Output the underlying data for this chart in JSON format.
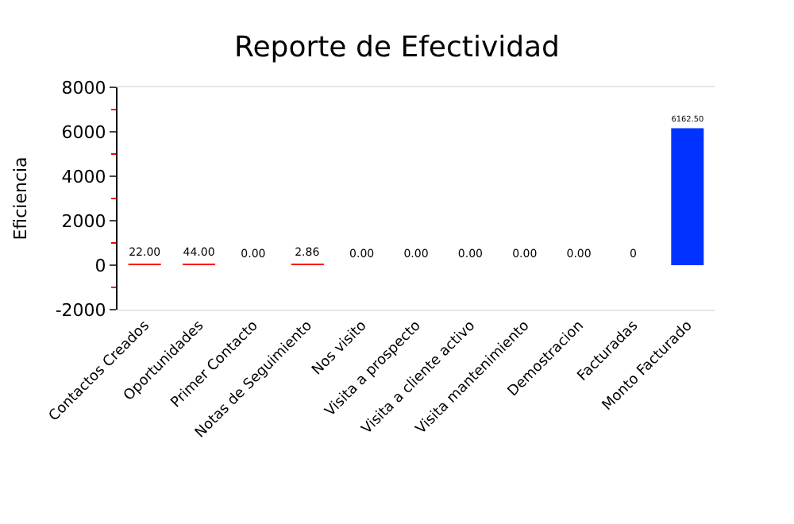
{
  "chart_data": {
    "type": "bar",
    "title": "Reporte de Efectividad",
    "ylabel": "Eficiencia",
    "categories": [
      "Contactos Creados",
      "Oportunidades",
      "Primer Contacto",
      "Notas de Seguimiento",
      "Nos visito",
      "Visita a prospecto",
      "Visita a cliente activo",
      "Visita mantenimiento",
      "Demostracion",
      "Facturadas",
      "Monto Facturado"
    ],
    "values": [
      22,
      44,
      0,
      2.86,
      0,
      0,
      0,
      0,
      0,
      0,
      6162.5
    ],
    "value_labels": [
      "22.00",
      "44.00",
      "0.00",
      "2.86",
      "0.00",
      "0.00",
      "0.00",
      "0.00",
      "0.00",
      "0",
      "6162.50"
    ],
    "colors": [
      "#ff0000",
      "#ff0000",
      "#ff0000",
      "#ff0000",
      "#ff0000",
      "#ff0000",
      "#ff0000",
      "#ff0000",
      "#ff0000",
      "#ff0000",
      "#0033ff"
    ],
    "ylim": [
      -2000,
      8000
    ],
    "yticks": [
      -2000,
      0,
      2000,
      4000,
      6000,
      8000
    ],
    "legend": false
  }
}
